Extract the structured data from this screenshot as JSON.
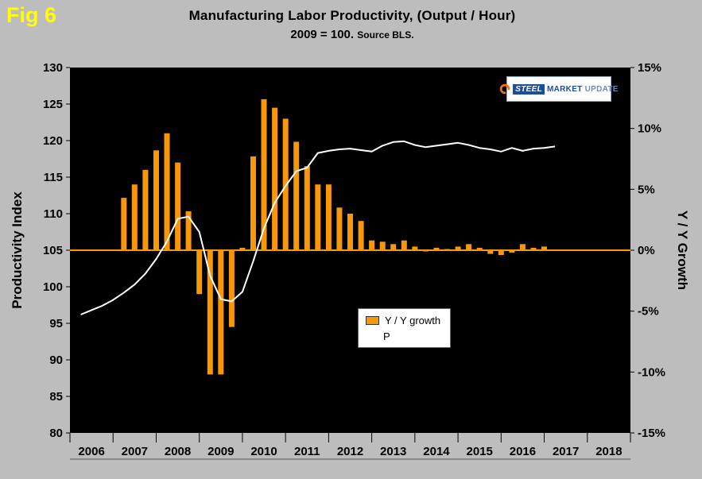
{
  "figure": {
    "label": "Fig 6"
  },
  "logo": {
    "words": [
      "STEEL",
      "MARKET",
      "UPDATE"
    ]
  },
  "legend": [
    "Y / Y growth",
    "P"
  ],
  "colors": {
    "background": "#BDBDBD",
    "plot_bg": "#000000",
    "bar": "#F79709",
    "zero_line": "#F79709",
    "line": "#FFFFFF",
    "fig_label": "#FFFF00",
    "logo_blue": "#1B4F9C",
    "logo_light_blue": "#6D8EB5",
    "logo_orange": "#E87511"
  },
  "chart_data": {
    "type": "combo",
    "title": "Manufacturing Labor Productivity, (Output / Hour)",
    "subtitle": "2009 = 100.",
    "subtitle_note": "Source BLS.",
    "grid": false,
    "legend_position": "inside-lower-middle",
    "left_axis": {
      "label": "Productivity Index",
      "min": 80,
      "max": 130,
      "tick_values": [
        130,
        125,
        120,
        115,
        110,
        105,
        100,
        95,
        90,
        85,
        80
      ],
      "tick_labels": [
        "130",
        "125",
        "120",
        "115",
        "110",
        "105",
        "100",
        "95",
        "90",
        "85",
        "80"
      ]
    },
    "right_axis": {
      "label": "Y / Y Growth",
      "min": -15,
      "max": 15,
      "tick_values": [
        15,
        10,
        5,
        0,
        -5,
        -10,
        -15
      ],
      "tick_labels": [
        "15%",
        "10%",
        "5%",
        "0%",
        "-5%",
        "-10%",
        "-15%"
      ]
    },
    "x_axis": {
      "start": 2005.75,
      "end": 2018.75,
      "year_labels": [
        "2006",
        "2007",
        "2008",
        "2009",
        "2010",
        "2011",
        "2012",
        "2013",
        "2014",
        "2015",
        "2016",
        "2017",
        "2018"
      ]
    },
    "series": [
      {
        "name": "Y / Y growth",
        "type": "bar",
        "axis": "right",
        "color": "#F79709",
        "start": 2007.0,
        "step": 0.25,
        "values": [
          4.3,
          5.4,
          6.6,
          8.2,
          9.6,
          7.2,
          3.2,
          -3.6,
          -10.2,
          -10.2,
          -6.3,
          0.2,
          7.7,
          12.4,
          11.7,
          10.8,
          8.9,
          6.9,
          5.4,
          5.4,
          3.5,
          3.0,
          2.4,
          0.8,
          0.7,
          0.5,
          0.8,
          0.3,
          -0.1,
          0.2,
          0.1,
          0.3,
          0.5,
          0.2,
          -0.3,
          -0.4,
          -0.2,
          0.5,
          0.2,
          0.3
        ]
      },
      {
        "name": "P",
        "type": "line",
        "axis": "left",
        "color": "#FFFFFF",
        "start": 2006.0,
        "step": 0.25,
        "values": [
          96.2,
          96.8,
          97.4,
          98.2,
          99.2,
          100.3,
          101.8,
          103.8,
          106.2,
          109.3,
          109.6,
          107.5,
          101.5,
          98.3,
          98.0,
          99.3,
          103.5,
          108.0,
          111.5,
          113.8,
          115.8,
          116.3,
          118.3,
          118.6,
          118.8,
          118.9,
          118.7,
          118.5,
          119.3,
          119.8,
          119.9,
          119.4,
          119.1,
          119.3,
          119.5,
          119.7,
          119.4,
          119.0,
          118.8,
          118.5,
          119.0,
          118.6,
          118.9,
          119.0,
          119.2
        ]
      }
    ]
  }
}
